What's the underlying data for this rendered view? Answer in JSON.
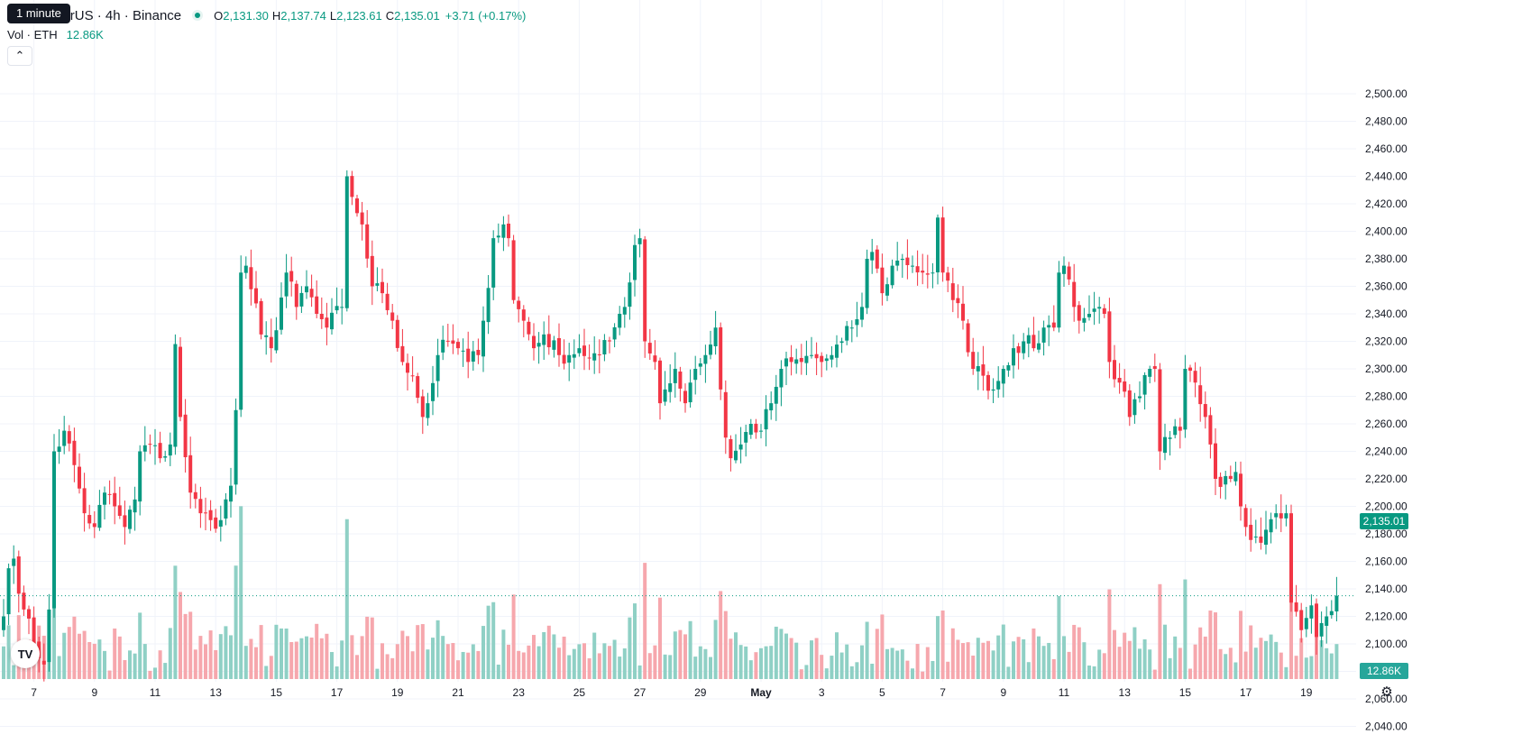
{
  "legend": {
    "symbol": "um / TetherUS · 4h · Binance",
    "open_label": "O",
    "open": "2,131.30",
    "high_label": "H",
    "high": "2,137.74",
    "low_label": "L",
    "low": "2,123.61",
    "close_label": "C",
    "close": "2,135.01",
    "change": "+3.71 (+0.17%)"
  },
  "tooltip": "1 minute",
  "volume_legend": {
    "label": "Vol · ETH",
    "value": "12.86K"
  },
  "collapse_icon": "chevron-up-icon",
  "price_tag": "2,135.01",
  "volume_tag": "12.86K",
  "colors": {
    "up": "#089981",
    "down": "#f23645",
    "vol_up": "#8fd0c5",
    "vol_down": "#f6a7ad",
    "grid": "#f0f3fa"
  },
  "icons": {
    "logo": "tradingview-logo-icon",
    "settings": "settings-gear-icon"
  },
  "chart_data": {
    "type": "candlestick",
    "price_axis": {
      "ticks": [
        "2,040.00",
        "2,060.00",
        "2,080.00",
        "2,100.00",
        "2,120.00",
        "2,140.00",
        "2,160.00",
        "2,180.00",
        "2,200.00",
        "2,220.00",
        "2,240.00",
        "2,260.00",
        "2,280.00",
        "2,300.00",
        "2,320.00",
        "2,340.00",
        "2,360.00",
        "2,380.00",
        "2,400.00",
        "2,420.00",
        "2,440.00",
        "2,460.00",
        "2,480.00",
        "2,500.00"
      ],
      "range": [
        2024,
        2504
      ]
    },
    "time_axis": {
      "labels": [
        "7",
        "9",
        "11",
        "13",
        "15",
        "17",
        "19",
        "21",
        "23",
        "25",
        "27",
        "29",
        "May",
        "3",
        "5",
        "7",
        "9",
        "11",
        "13",
        "15",
        "17",
        "19"
      ],
      "label_bar_index": [
        6,
        18,
        30,
        42,
        54,
        66,
        78,
        90,
        102,
        114,
        126,
        138,
        150,
        162,
        174,
        186,
        198,
        210,
        222,
        234,
        246,
        258
      ]
    },
    "last_price": 2135.01,
    "keypoints": [
      [
        0,
        2120
      ],
      [
        1,
        2155
      ],
      [
        2,
        2162
      ],
      [
        4,
        2125
      ],
      [
        6,
        2100
      ],
      [
        8,
        2085
      ],
      [
        9,
        2125
      ],
      [
        10,
        2240
      ],
      [
        12,
        2255
      ],
      [
        14,
        2230
      ],
      [
        16,
        2195
      ],
      [
        18,
        2185
      ],
      [
        20,
        2210
      ],
      [
        22,
        2200
      ],
      [
        24,
        2185
      ],
      [
        26,
        2205
      ],
      [
        27,
        2240
      ],
      [
        29,
        2245
      ],
      [
        31,
        2235
      ],
      [
        33,
        2245
      ],
      [
        34,
        2318
      ],
      [
        35,
        2265
      ],
      [
        37,
        2210
      ],
      [
        39,
        2195
      ],
      [
        41,
        2190
      ],
      [
        43,
        2190
      ],
      [
        45,
        2215
      ],
      [
        46,
        2270
      ],
      [
        47,
        2370
      ],
      [
        48,
        2375
      ],
      [
        51,
        2325
      ],
      [
        53,
        2315
      ],
      [
        56,
        2370
      ],
      [
        58,
        2345
      ],
      [
        60,
        2360
      ],
      [
        62,
        2340
      ],
      [
        64,
        2330
      ],
      [
        67,
        2345
      ],
      [
        68,
        2440
      ],
      [
        69,
        2425
      ],
      [
        71,
        2405
      ],
      [
        73,
        2360
      ],
      [
        75,
        2355
      ],
      [
        77,
        2335
      ],
      [
        79,
        2305
      ],
      [
        81,
        2295
      ],
      [
        83,
        2265
      ],
      [
        84,
        2275
      ],
      [
        86,
        2310
      ],
      [
        88,
        2320
      ],
      [
        90,
        2315
      ],
      [
        92,
        2305
      ],
      [
        94,
        2310
      ],
      [
        95,
        2335
      ],
      [
        97,
        2395
      ],
      [
        99,
        2405
      ],
      [
        100,
        2395
      ],
      [
        101,
        2350
      ],
      [
        103,
        2335
      ],
      [
        105,
        2315
      ],
      [
        107,
        2325
      ],
      [
        110,
        2310
      ],
      [
        112,
        2310
      ],
      [
        114,
        2315
      ],
      [
        116,
        2308
      ],
      [
        118,
        2310
      ],
      [
        120,
        2320
      ],
      [
        122,
        2340
      ],
      [
        123,
        2345
      ],
      [
        125,
        2390
      ],
      [
        126,
        2395
      ],
      [
        127,
        2320
      ],
      [
        129,
        2305
      ],
      [
        130,
        2275
      ],
      [
        131,
        2285
      ],
      [
        133,
        2300
      ],
      [
        135,
        2275
      ],
      [
        136,
        2290
      ],
      [
        137,
        2300
      ],
      [
        139,
        2310
      ],
      [
        141,
        2330
      ],
      [
        142,
        2285
      ],
      [
        143,
        2250
      ],
      [
        144,
        2235
      ],
      [
        146,
        2245
      ],
      [
        148,
        2260
      ],
      [
        150,
        2255
      ],
      [
        152,
        2275
      ],
      [
        154,
        2300
      ],
      [
        156,
        2305
      ],
      [
        158,
        2305
      ],
      [
        160,
        2310
      ],
      [
        162,
        2305
      ],
      [
        164,
        2310
      ],
      [
        166,
        2320
      ],
      [
        168,
        2330
      ],
      [
        170,
        2345
      ],
      [
        171,
        2380
      ],
      [
        172,
        2385
      ],
      [
        174,
        2355
      ],
      [
        176,
        2375
      ],
      [
        178,
        2380
      ],
      [
        180,
        2375
      ],
      [
        182,
        2370
      ],
      [
        184,
        2370
      ],
      [
        185,
        2410
      ],
      [
        186,
        2370
      ],
      [
        188,
        2350
      ],
      [
        190,
        2335
      ],
      [
        192,
        2300
      ],
      [
        194,
        2295
      ],
      [
        196,
        2285
      ],
      [
        198,
        2300
      ],
      [
        200,
        2315
      ],
      [
        202,
        2320
      ],
      [
        204,
        2315
      ],
      [
        206,
        2330
      ],
      [
        208,
        2330
      ],
      [
        209,
        2370
      ],
      [
        210,
        2375
      ],
      [
        211,
        2365
      ],
      [
        213,
        2335
      ],
      [
        215,
        2340
      ],
      [
        217,
        2345
      ],
      [
        218,
        2340
      ],
      [
        219,
        2305
      ],
      [
        221,
        2290
      ],
      [
        223,
        2265
      ],
      [
        225,
        2280
      ],
      [
        227,
        2300
      ],
      [
        228,
        2300
      ],
      [
        229,
        2240
      ],
      [
        231,
        2250
      ],
      [
        233,
        2255
      ],
      [
        234,
        2300
      ],
      [
        236,
        2290
      ],
      [
        238,
        2265
      ],
      [
        239,
        2245
      ],
      [
        240,
        2220
      ],
      [
        242,
        2222
      ],
      [
        244,
        2225
      ],
      [
        245,
        2200
      ],
      [
        246,
        2185
      ],
      [
        248,
        2178
      ],
      [
        250,
        2183
      ],
      [
        252,
        2195
      ],
      [
        254,
        2195
      ],
      [
        255,
        2130
      ],
      [
        257,
        2110
      ],
      [
        259,
        2128
      ],
      [
        260,
        2105
      ],
      [
        262,
        2120
      ],
      [
        264,
        2135
      ]
    ]
  }
}
